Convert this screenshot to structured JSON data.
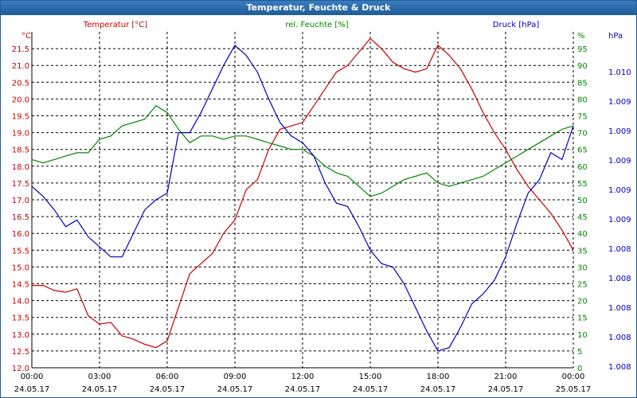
{
  "window": {
    "title": "Temperatur, Feuchte & Druck"
  },
  "colors": {
    "temperature": "#cc0000",
    "humidity": "#008800",
    "pressure": "#0000bb",
    "titlebar": "#1f5d96"
  },
  "chart_data": {
    "type": "line",
    "title": "Temperatur, Feuchte & Druck",
    "grid": true,
    "x_tick_labels": [
      {
        "time": "00:00",
        "date": "24.05.17"
      },
      {
        "time": "03:00",
        "date": "24.05.17"
      },
      {
        "time": "06:00",
        "date": "24.05.17"
      },
      {
        "time": "09:00",
        "date": "24.05.17"
      },
      {
        "time": "12:00",
        "date": "24.05.17"
      },
      {
        "time": "15:00",
        "date": "24.05.17"
      },
      {
        "time": "18:00",
        "date": "24.05.17"
      },
      {
        "time": "21:00",
        "date": "24.05.17"
      },
      {
        "time": "00:00",
        "date": "25.05.17"
      }
    ],
    "axes": {
      "temperature": {
        "title": "Temperatur [°C]",
        "unit": "°C",
        "ylim": [
          12.0,
          22.0
        ],
        "ticks": [
          "12.0",
          "12.5",
          "13.0",
          "13.5",
          "14.0",
          "14.5",
          "15.0",
          "15.5",
          "16.0",
          "16.5",
          "17.0",
          "17.5",
          "18.0",
          "18.5",
          "19.0",
          "19.5",
          "20.0",
          "20.5",
          "21.0",
          "21.5"
        ]
      },
      "humidity": {
        "title": "rel. Feuchte [%]",
        "unit": "%",
        "ylim": [
          0,
          100
        ],
        "ticks": [
          "0",
          "5",
          "10",
          "15",
          "20",
          "25",
          "30",
          "35",
          "40",
          "45",
          "50",
          "55",
          "60",
          "65",
          "70",
          "75",
          "80",
          "85",
          "90",
          "95"
        ]
      },
      "pressure": {
        "title": "Druck [hPa]",
        "unit": "hPa",
        "ticks": [
          "1.008",
          "1.008",
          "1.008",
          "1.008",
          "1.008",
          "1.009",
          "1.009",
          "1.009",
          "1.009",
          "1.009",
          "1.010"
        ]
      }
    },
    "series": [
      {
        "name": "Temperatur [°C]",
        "axis": "temperature",
        "x_hours": [
          0,
          0.5,
          1,
          1.5,
          2,
          2.5,
          3,
          3.5,
          4,
          4.5,
          5,
          5.5,
          6,
          6.5,
          7,
          7.5,
          8,
          8.5,
          9,
          9.5,
          10,
          10.5,
          11,
          11.5,
          12,
          12.5,
          13,
          13.5,
          14,
          14.5,
          15,
          15.5,
          16,
          16.5,
          17,
          17.5,
          18,
          18.5,
          19,
          19.5,
          20,
          20.5,
          21,
          21.5,
          22,
          22.5,
          23,
          23.5,
          24
        ],
        "values": [
          14.45,
          14.45,
          14.3,
          14.25,
          14.35,
          13.55,
          13.3,
          13.35,
          12.95,
          12.85,
          12.7,
          12.6,
          12.8,
          13.8,
          14.8,
          15.1,
          15.4,
          16.0,
          16.4,
          17.3,
          17.6,
          18.5,
          19.1,
          19.2,
          19.3,
          19.8,
          20.3,
          20.8,
          21.0,
          21.4,
          21.8,
          21.5,
          21.1,
          20.9,
          20.8,
          20.9,
          21.6,
          21.3,
          20.9,
          20.3,
          19.6,
          19.0,
          18.5,
          17.9,
          17.4,
          17.0,
          16.6,
          16.1,
          15.5
        ]
      },
      {
        "name": "rel. Feuchte [%]",
        "axis": "humidity",
        "x_hours": [
          0,
          0.5,
          1,
          1.5,
          2,
          2.5,
          3,
          3.5,
          4,
          4.5,
          5,
          5.5,
          6,
          6.5,
          7,
          7.5,
          8,
          8.5,
          9,
          9.5,
          10,
          10.5,
          11,
          11.5,
          12,
          12.5,
          13,
          13.5,
          14,
          14.5,
          15,
          15.5,
          16,
          16.5,
          17,
          17.5,
          18,
          18.5,
          19,
          19.5,
          20,
          20.5,
          21,
          21.5,
          22,
          22.5,
          23,
          23.5,
          24
        ],
        "values": [
          62,
          61,
          62,
          63,
          64,
          64,
          68,
          69,
          72,
          73,
          74,
          78,
          76,
          71,
          67,
          69,
          69,
          68,
          69,
          69,
          68,
          67,
          66,
          65,
          65,
          63,
          60,
          58,
          57,
          54,
          51,
          52,
          54,
          56,
          57,
          58,
          55,
          54,
          55,
          56,
          57,
          59,
          61,
          63,
          65,
          67,
          69,
          71,
          72
        ]
      },
      {
        "name": "Druck [hPa]",
        "axis": "pressure",
        "x_hours": [
          0,
          0.5,
          1,
          1.5,
          2,
          2.5,
          3,
          3.5,
          4,
          4.5,
          5,
          5.5,
          6,
          6.5,
          7,
          7.5,
          8,
          8.5,
          9,
          9.5,
          10,
          10.5,
          11,
          11.5,
          12,
          12.5,
          13,
          13.5,
          14,
          14.5,
          15,
          15.5,
          16,
          16.5,
          17,
          17.5,
          18,
          18.5,
          19,
          19.5,
          20,
          20.5,
          21,
          21.5,
          22,
          22.5,
          23,
          23.5,
          24
        ],
        "values": [
          54,
          51,
          47,
          42,
          44,
          39,
          36,
          33,
          33,
          40,
          47,
          50,
          52,
          70,
          70,
          76,
          83,
          90,
          96,
          93,
          88,
          80,
          73,
          69,
          67,
          63,
          55,
          49,
          48,
          42,
          35,
          31,
          30,
          25,
          18,
          11,
          5,
          6,
          12,
          19,
          22,
          26,
          33,
          43,
          52,
          56,
          64,
          62,
          72
        ]
      }
    ]
  }
}
